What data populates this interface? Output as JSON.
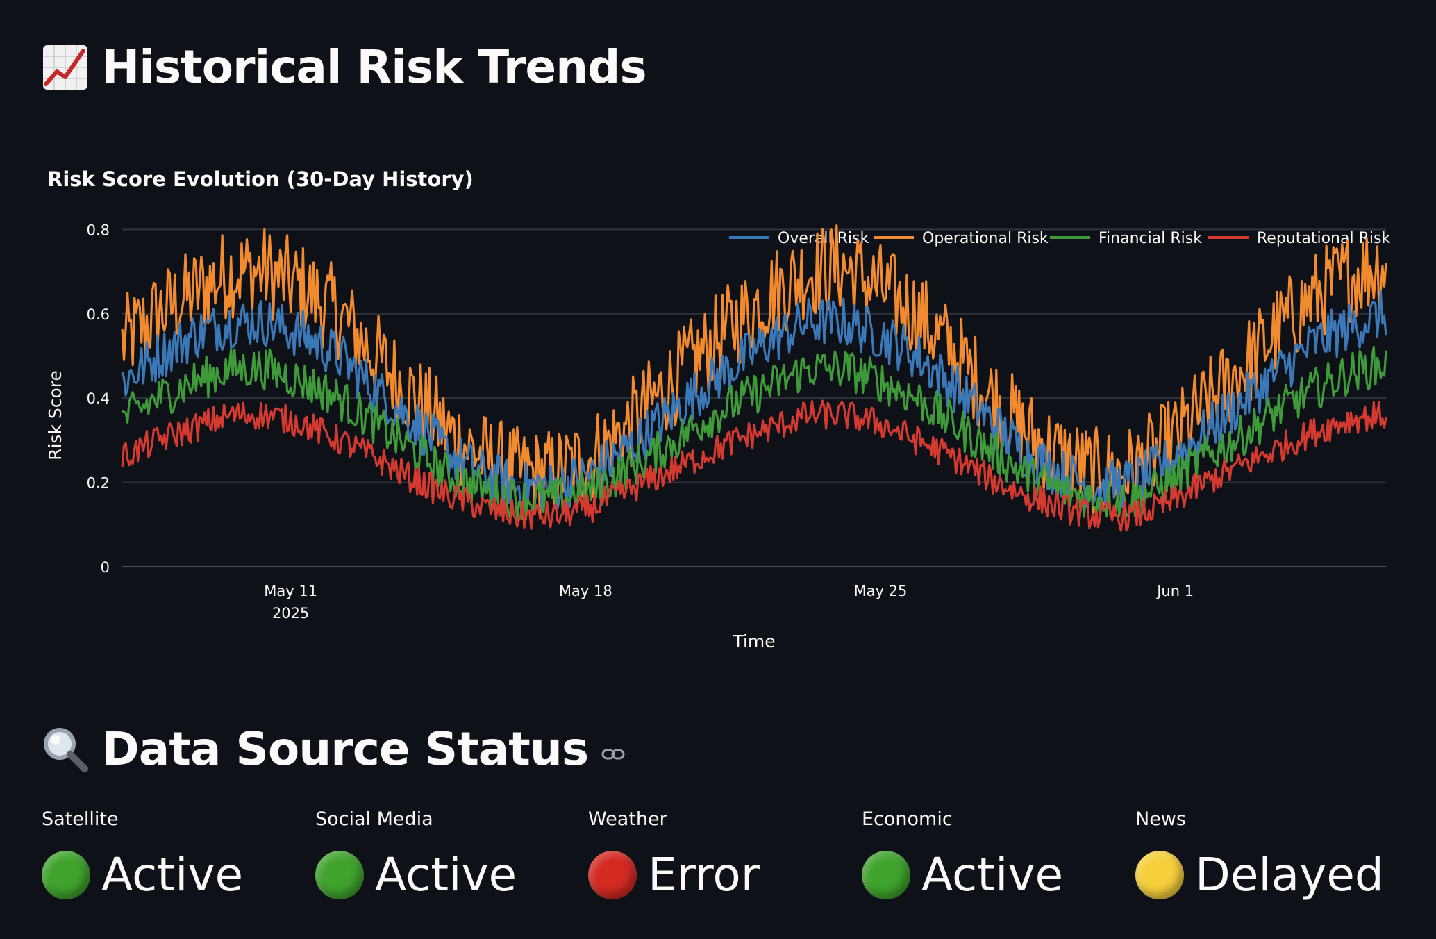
{
  "header": {
    "trends_title": "Historical Risk Trends",
    "trends_icon": "chart-increasing-icon",
    "sources_title": "Data Source Status",
    "sources_icon": "magnifying-glass-icon"
  },
  "chart_data": {
    "type": "line",
    "title": "Risk Score Evolution (30-Day History)",
    "xlabel": "Time",
    "ylabel": "Risk Score",
    "ylim": [
      0,
      0.85
    ],
    "yticks": [
      "0",
      "0.2",
      "0.4",
      "0.6",
      "0.8"
    ],
    "ytick_values": [
      0,
      0.2,
      0.4,
      0.6,
      0.8
    ],
    "xticks": [
      {
        "label": "May 11",
        "sublabel": "2025",
        "day": 11
      },
      {
        "label": "May 18",
        "sublabel": "",
        "day": 18
      },
      {
        "label": "May 25",
        "sublabel": "",
        "day": 25
      },
      {
        "label": "Jun 1",
        "sublabel": "",
        "day": 32
      }
    ],
    "x_range_days": [
      7,
      37
    ],
    "legend_position": "top-right",
    "grid": true,
    "series": [
      {
        "name": "Overall Risk",
        "color": "#3b78b8",
        "values": [
          0.44,
          0.5,
          0.55,
          0.58,
          0.58,
          0.55,
          0.5,
          0.42,
          0.35,
          0.27,
          0.22,
          0.19,
          0.19,
          0.22,
          0.28,
          0.35,
          0.42,
          0.48,
          0.54,
          0.58,
          0.58,
          0.55,
          0.5,
          0.43,
          0.35,
          0.27,
          0.22,
          0.19,
          0.2,
          0.25,
          0.32,
          0.39,
          0.46,
          0.53,
          0.57,
          0.6
        ]
      },
      {
        "name": "Operational Risk",
        "color": "#f28a30",
        "values": [
          0.53,
          0.6,
          0.65,
          0.7,
          0.7,
          0.66,
          0.6,
          0.5,
          0.41,
          0.32,
          0.26,
          0.22,
          0.22,
          0.26,
          0.33,
          0.42,
          0.5,
          0.58,
          0.65,
          0.7,
          0.71,
          0.66,
          0.6,
          0.51,
          0.41,
          0.32,
          0.26,
          0.22,
          0.23,
          0.29,
          0.38,
          0.47,
          0.56,
          0.64,
          0.69,
          0.72
        ]
      },
      {
        "name": "Financial Risk",
        "color": "#3f9b39",
        "values": [
          0.35,
          0.4,
          0.44,
          0.47,
          0.47,
          0.44,
          0.4,
          0.34,
          0.28,
          0.22,
          0.18,
          0.16,
          0.16,
          0.18,
          0.23,
          0.28,
          0.34,
          0.39,
          0.43,
          0.47,
          0.47,
          0.44,
          0.4,
          0.34,
          0.28,
          0.22,
          0.18,
          0.16,
          0.16,
          0.2,
          0.26,
          0.31,
          0.37,
          0.42,
          0.46,
          0.48
        ]
      },
      {
        "name": "Reputational Risk",
        "color": "#d53a30",
        "values": [
          0.26,
          0.3,
          0.33,
          0.36,
          0.36,
          0.34,
          0.3,
          0.26,
          0.21,
          0.17,
          0.14,
          0.12,
          0.12,
          0.14,
          0.18,
          0.22,
          0.26,
          0.3,
          0.33,
          0.36,
          0.36,
          0.34,
          0.3,
          0.26,
          0.21,
          0.17,
          0.14,
          0.12,
          0.12,
          0.15,
          0.2,
          0.24,
          0.28,
          0.32,
          0.35,
          0.36
        ]
      }
    ]
  },
  "status": {
    "items": [
      {
        "label": "Satellite",
        "value": "Active",
        "color": "#3fa32d",
        "icon": "green-circle-icon"
      },
      {
        "label": "Social Media",
        "value": "Active",
        "color": "#3fa32d",
        "icon": "green-circle-icon"
      },
      {
        "label": "Weather",
        "value": "Error",
        "color": "#d32a22",
        "icon": "red-circle-icon"
      },
      {
        "label": "Economic",
        "value": "Active",
        "color": "#3fa32d",
        "icon": "green-circle-icon"
      },
      {
        "label": "News",
        "value": "Delayed",
        "color": "#f6cf3c",
        "icon": "yellow-circle-icon"
      }
    ]
  }
}
